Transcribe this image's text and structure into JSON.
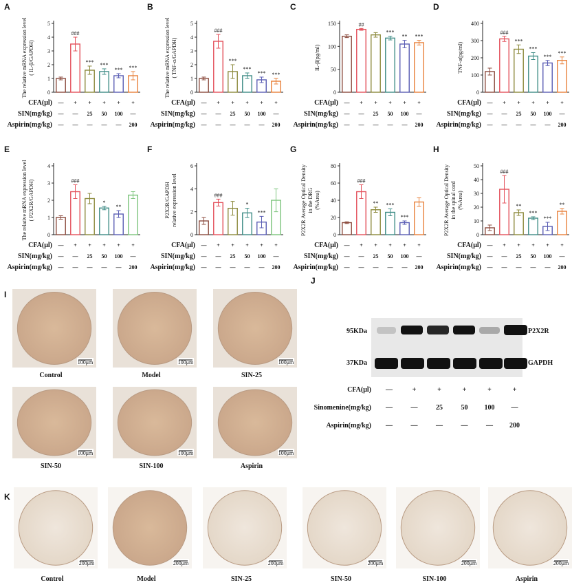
{
  "chart_data": [
    {
      "type": "bar",
      "panel": "A",
      "ylabel": [
        "The relative mRNA expression level",
        "( IL-β/GAPDH)"
      ],
      "ylim": [
        0,
        5
      ],
      "yticks": [
        0,
        1,
        2,
        3,
        4,
        5
      ],
      "values": [
        1.0,
        3.5,
        1.6,
        1.5,
        1.2,
        1.2
      ],
      "errors": [
        0.1,
        0.5,
        0.3,
        0.2,
        0.15,
        0.3
      ],
      "significance": [
        null,
        "###",
        "***",
        "***",
        "***",
        "***"
      ],
      "colors": [
        "#8b4b3e",
        "#e3515b",
        "#8c8a3c",
        "#3e8c86",
        "#5a5db4",
        "#e8803a"
      ],
      "conditions": [
        {
          "label": "CFA(μl)",
          "cells": [
            "—",
            "+",
            "+",
            "+",
            "+",
            "+"
          ]
        },
        {
          "label": "SIN(mg/kg)",
          "cells": [
            "—",
            "—",
            "25",
            "50",
            "100",
            "—"
          ]
        },
        {
          "label": "Aspirin(mg/kg)",
          "cells": [
            "—",
            "—",
            "—",
            "—",
            "—",
            "200"
          ]
        }
      ]
    },
    {
      "type": "bar",
      "panel": "B",
      "ylabel": [
        "The relative mRNA expression level",
        "( TNF-α/GAPDH)"
      ],
      "ylim": [
        0,
        5
      ],
      "yticks": [
        0,
        1,
        2,
        3,
        4,
        5
      ],
      "values": [
        1.0,
        3.7,
        1.5,
        1.2,
        0.9,
        0.8
      ],
      "errors": [
        0.1,
        0.5,
        0.5,
        0.2,
        0.2,
        0.2
      ],
      "significance": [
        null,
        "###",
        "***",
        "***",
        "***",
        "***"
      ],
      "colors": [
        "#8b4b3e",
        "#e3515b",
        "#8c8a3c",
        "#3e8c86",
        "#5a5db4",
        "#e8803a"
      ],
      "conditions": [
        {
          "label": "CFA(μl)",
          "cells": [
            "—",
            "+",
            "+",
            "+",
            "+",
            "+"
          ]
        },
        {
          "label": "SIN(mg/kg)",
          "cells": [
            "—",
            "—",
            "25",
            "50",
            "100",
            "—"
          ]
        },
        {
          "label": "Aspirin(mg/kg)",
          "cells": [
            "—",
            "—",
            "—",
            "—",
            "—",
            "200"
          ]
        }
      ]
    },
    {
      "type": "bar",
      "panel": "C",
      "ylabel": [
        "IL-β(pg/ml)"
      ],
      "ylim": [
        0,
        150
      ],
      "yticks": [
        0,
        50,
        100,
        150
      ],
      "values": [
        122,
        137,
        125,
        118,
        105,
        108
      ],
      "errors": [
        3,
        2,
        5,
        4,
        8,
        5
      ],
      "significance": [
        null,
        "##",
        null,
        "***",
        "**",
        "***"
      ],
      "colors": [
        "#8b4b3e",
        "#e3515b",
        "#8c8a3c",
        "#3e8c86",
        "#5a5db4",
        "#e8803a"
      ],
      "conditions": [
        {
          "label": "CFA(μl)",
          "cells": [
            "—",
            "+",
            "+",
            "+",
            "+",
            "+"
          ]
        },
        {
          "label": "SIN(mg/kg)",
          "cells": [
            "—",
            "—",
            "25",
            "50",
            "100",
            "—"
          ]
        },
        {
          "label": "Aspirin(mg/kg)",
          "cells": [
            "—",
            "—",
            "—",
            "—",
            "—",
            "200"
          ]
        }
      ]
    },
    {
      "type": "bar",
      "panel": "D",
      "ylabel": [
        "TNF-α(pg/ml)"
      ],
      "ylim": [
        0,
        400
      ],
      "yticks": [
        0,
        100,
        200,
        300,
        400
      ],
      "values": [
        120,
        310,
        250,
        210,
        170,
        185
      ],
      "errors": [
        20,
        15,
        25,
        20,
        15,
        20
      ],
      "significance": [
        null,
        "###",
        "***",
        "***",
        "***",
        "***"
      ],
      "colors": [
        "#8b4b3e",
        "#e3515b",
        "#8c8a3c",
        "#3e8c86",
        "#5a5db4",
        "#e8803a"
      ],
      "conditions": [
        {
          "label": "CFA(μl)",
          "cells": [
            "—",
            "+",
            "+",
            "+",
            "+",
            "+"
          ]
        },
        {
          "label": "SIN(mg/kg)",
          "cells": [
            "—",
            "—",
            "25",
            "50",
            "100",
            "—"
          ]
        },
        {
          "label": "Aspirin(mg/kg)",
          "cells": [
            "—",
            "—",
            "—",
            "—",
            "—",
            "200"
          ]
        }
      ]
    },
    {
      "type": "bar",
      "panel": "E",
      "ylabel": [
        "The relative mRNA expression level",
        "( P2X2R/GAPDH)"
      ],
      "ylim": [
        0,
        4
      ],
      "yticks": [
        0,
        1,
        2,
        3,
        4
      ],
      "values": [
        1.0,
        2.5,
        2.1,
        1.55,
        1.2,
        2.3
      ],
      "errors": [
        0.1,
        0.4,
        0.3,
        0.1,
        0.2,
        0.2
      ],
      "significance": [
        null,
        "###",
        null,
        "*",
        "**",
        null
      ],
      "colors": [
        "#8b4b3e",
        "#e3515b",
        "#8c8a3c",
        "#3e8c86",
        "#5a5db4",
        "#7cc47c"
      ],
      "conditions": [
        {
          "label": "CFA(μl)",
          "cells": [
            "—",
            "+",
            "+",
            "+",
            "+",
            "+"
          ]
        },
        {
          "label": "SIN(mg/kg)",
          "cells": [
            "—",
            "—",
            "25",
            "50",
            "100",
            "—"
          ]
        },
        {
          "label": "Aspirin(mg/kg)",
          "cells": [
            "—",
            "—",
            "—",
            "—",
            "—",
            "200"
          ]
        }
      ]
    },
    {
      "type": "bar",
      "panel": "F",
      "ylabel": [
        "P2X2R/GAPDH",
        "relative expression level"
      ],
      "ylim": [
        0,
        6
      ],
      "yticks": [
        0,
        2,
        4,
        6
      ],
      "values": [
        1.2,
        2.8,
        2.3,
        1.9,
        1.1,
        3.0
      ],
      "errors": [
        0.3,
        0.3,
        0.6,
        0.4,
        0.5,
        1.0
      ],
      "significance": [
        null,
        "###",
        null,
        "*",
        "***",
        null
      ],
      "colors": [
        "#8b4b3e",
        "#e3515b",
        "#8c8a3c",
        "#3e8c86",
        "#5a5db4",
        "#7cc47c"
      ],
      "conditions": [
        {
          "label": "CFA(μl)",
          "cells": [
            "—",
            "+",
            "+",
            "+",
            "+",
            "+"
          ]
        },
        {
          "label": "SIN(mg/kg)",
          "cells": [
            "—",
            "—",
            "25",
            "50",
            "100",
            "—"
          ]
        },
        {
          "label": "Aspirin(mg/kg)",
          "cells": [
            "—",
            "—",
            "—",
            "—",
            "—",
            "200"
          ]
        }
      ]
    },
    {
      "type": "bar",
      "panel": "G",
      "ylabel": [
        "P2X2R Average Optical Density",
        "in the DRG",
        "(%Area)"
      ],
      "ylim": [
        0,
        80
      ],
      "yticks": [
        0,
        20,
        40,
        60,
        80
      ],
      "values": [
        14,
        50,
        29,
        26,
        14,
        38
      ],
      "errors": [
        1,
        8,
        3,
        4,
        2,
        5
      ],
      "significance": [
        null,
        "###",
        "**",
        "***",
        "***",
        null
      ],
      "colors": [
        "#8b4b3e",
        "#e3515b",
        "#8c8a3c",
        "#3e8c86",
        "#5a5db4",
        "#e8803a"
      ],
      "conditions": [
        {
          "label": "CFA(μl)",
          "cells": [
            "—",
            "+",
            "+",
            "+",
            "+",
            "+"
          ]
        },
        {
          "label": "SIN(mg/kg)",
          "cells": [
            "—",
            "—",
            "25",
            "50",
            "100",
            "—"
          ]
        },
        {
          "label": "Aspirin(mg/kg)",
          "cells": [
            "—",
            "—",
            "—",
            "—",
            "—",
            "200"
          ]
        }
      ]
    },
    {
      "type": "bar",
      "panel": "H",
      "ylabel": [
        "P2X2R Average Optical Density",
        "in the spinal cord",
        "(%Area)"
      ],
      "ylim": [
        0,
        50
      ],
      "yticks": [
        0,
        10,
        20,
        30,
        40,
        50
      ],
      "values": [
        5,
        33,
        16,
        12,
        6,
        17
      ],
      "errors": [
        2,
        10,
        2,
        1,
        3,
        2
      ],
      "significance": [
        null,
        "###",
        "**",
        "***",
        "***",
        "**"
      ],
      "colors": [
        "#8b4b3e",
        "#e3515b",
        "#8c8a3c",
        "#3e8c86",
        "#5a5db4",
        "#e8803a"
      ],
      "conditions": [
        {
          "label": "CFA(μl)",
          "cells": [
            "—",
            "+",
            "+",
            "+",
            "+",
            "+"
          ]
        },
        {
          "label": "SIN(mg/kg)",
          "cells": [
            "—",
            "—",
            "25",
            "50",
            "100",
            "—"
          ]
        },
        {
          "label": "Aspirin(mg/kg)",
          "cells": [
            "—",
            "—",
            "—",
            "—",
            "—",
            "200"
          ]
        }
      ]
    }
  ],
  "panel_I": {
    "letter": "I",
    "labels": [
      "Control",
      "Model",
      "SIN-25",
      "SIN-50",
      "SIN-100",
      "Aspirin"
    ],
    "scale_bar": "100μm"
  },
  "panel_J": {
    "letter": "J",
    "markers": [
      "95KDa",
      "37KDa"
    ],
    "bands": [
      "P2X2R",
      "GAPDH"
    ],
    "conditions": [
      {
        "label": "CFA(μl)",
        "cells": [
          "—",
          "+",
          "+",
          "+",
          "+",
          "+"
        ]
      },
      {
        "label": "Sinomenine(mg/kg)",
        "cells": [
          "—",
          "—",
          "25",
          "50",
          "100",
          "—"
        ]
      },
      {
        "label": "Aspirin(mg/kg)",
        "cells": [
          "—",
          "—",
          "—",
          "—",
          "—",
          "200"
        ]
      }
    ]
  },
  "panel_K": {
    "letter": "K",
    "labels": [
      "Control",
      "Model",
      "SIN-25",
      "SIN-50",
      "SIN-100",
      "Aspirin"
    ],
    "scale_bar": "200μm"
  }
}
